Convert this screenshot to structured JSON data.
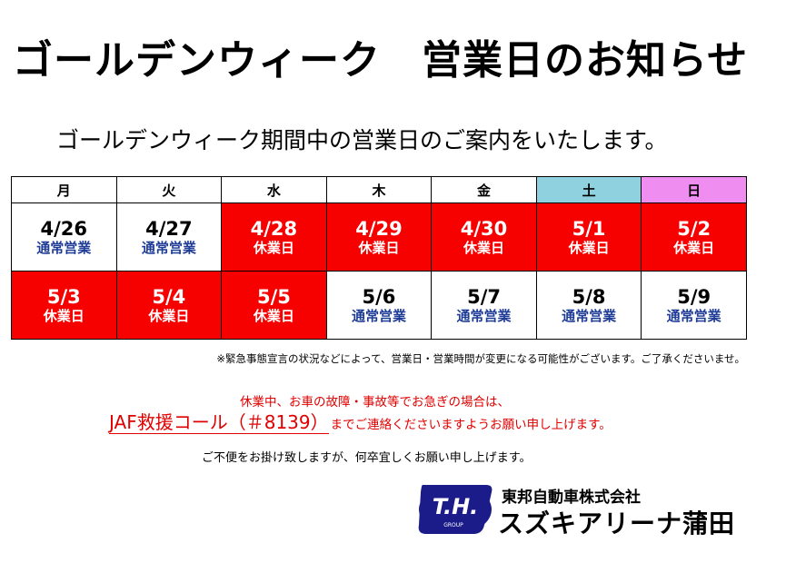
{
  "title": "ゴールデンウィーク　営業日のお知らせ",
  "subtitle": "ゴールデンウィーク期間中の営業日のご案内をいたします。",
  "calendar": {
    "weekdays": [
      "月",
      "火",
      "水",
      "木",
      "金",
      "土",
      "日"
    ],
    "weeks": [
      [
        {
          "date": "4/26",
          "status": "通常営業",
          "closed": false
        },
        {
          "date": "4/27",
          "status": "通常営業",
          "closed": false
        },
        {
          "date": "4/28",
          "status": "休業日",
          "closed": true
        },
        {
          "date": "4/29",
          "status": "休業日",
          "closed": true
        },
        {
          "date": "4/30",
          "status": "休業日",
          "closed": true
        },
        {
          "date": "5/1",
          "status": "休業日",
          "closed": true
        },
        {
          "date": "5/2",
          "status": "休業日",
          "closed": true
        }
      ],
      [
        {
          "date": "5/3",
          "status": "休業日",
          "closed": true
        },
        {
          "date": "5/4",
          "status": "休業日",
          "closed": true
        },
        {
          "date": "5/5",
          "status": "休業日",
          "closed": true
        },
        {
          "date": "5/6",
          "status": "通常営業",
          "closed": false
        },
        {
          "date": "5/7",
          "status": "通常営業",
          "closed": false
        },
        {
          "date": "5/8",
          "status": "通常営業",
          "closed": false
        },
        {
          "date": "5/9",
          "status": "通常営業",
          "closed": false
        }
      ]
    ]
  },
  "note": "※緊急事態宣言の状況などによって、営業日・営業時間が変更になる可能性がございます。ご了承くださいませ。",
  "emergency": {
    "line1": "休業中、お車の故障・事故等でお急ぎの場合は、",
    "jaf": "JAF救援コール（＃8139）",
    "line2": "までご連絡くださいますようお願い申し上げます。"
  },
  "apology": "ご不便をお掛け致しますが、何卒宜しくお願い申し上げます。",
  "footer": {
    "logo_text": "T.H.",
    "logo_sub": "GROUP",
    "company": "東邦自動車株式会社",
    "store": "スズキアリーナ蒲田"
  },
  "colors": {
    "closed": "#f60000",
    "open_status": "#1e3c96",
    "saturday_header": "#8fd1de",
    "sunday_header": "#f08df0",
    "emphasis": "#e00000",
    "logo": "#1b1b8a"
  }
}
